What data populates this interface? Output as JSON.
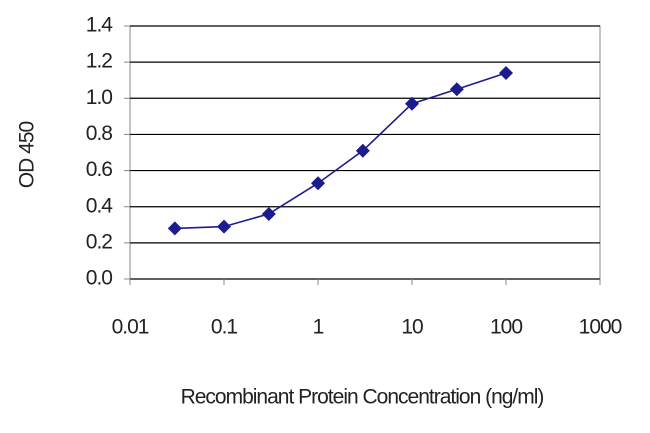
{
  "chart_data": {
    "type": "line",
    "xlabel": "Recombinant Protein Concentration (ng/ml)",
    "ylabel": "OD 450",
    "x": [
      0.03,
      0.1,
      0.3,
      1,
      3,
      10,
      30,
      100
    ],
    "values": [
      0.28,
      0.29,
      0.36,
      0.53,
      0.71,
      0.97,
      1.05,
      1.14
    ],
    "color": "#1c1c8f",
    "xscale": "log",
    "grid": true,
    "xlim": [
      0.01,
      1000
    ],
    "xticks": [
      0.01,
      0.1,
      1,
      10,
      100,
      1000
    ],
    "ylim": [
      0,
      1.4
    ],
    "yticks": [
      {
        "value": 0,
        "label": "0.0"
      },
      0.2,
      0.4,
      0.6,
      0.8,
      {
        "value": 1,
        "label": "1.0"
      },
      1.2,
      1.4
    ]
  }
}
